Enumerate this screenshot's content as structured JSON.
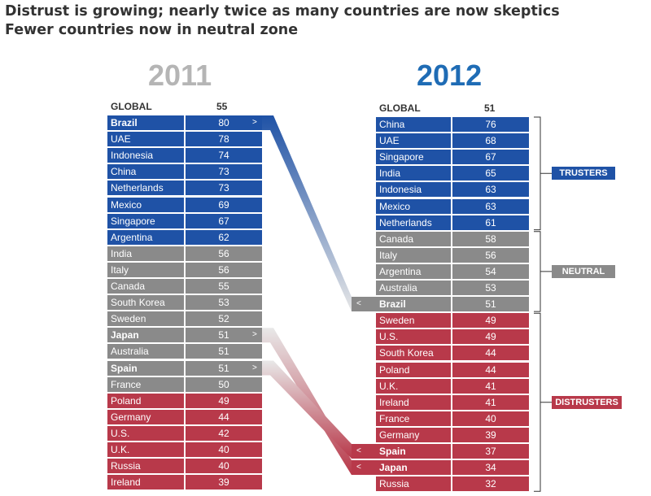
{
  "header": {
    "title": "Distrust is growing; nearly twice as many countries are now skeptics",
    "subtitle": "Fewer countries now in neutral zone"
  },
  "colors": {
    "truster": "#1f52a6",
    "neutral": "#8a8a8a",
    "distruster": "#b8394a",
    "year2011": "#b5b5b5",
    "year2012": "#1f6cb5"
  },
  "chart_data": {
    "type": "table",
    "tables": [
      {
        "year": "2011",
        "global_label": "GLOBAL",
        "global_value": "55",
        "rows": [
          {
            "country": "Brazil",
            "value": "80",
            "zone": "truster",
            "highlight": true,
            "mark": ">"
          },
          {
            "country": "UAE",
            "value": "78",
            "zone": "truster"
          },
          {
            "country": "Indonesia",
            "value": "74",
            "zone": "truster"
          },
          {
            "country": "China",
            "value": "73",
            "zone": "truster"
          },
          {
            "country": "Netherlands",
            "value": "73",
            "zone": "truster"
          },
          {
            "country": "Mexico",
            "value": "69",
            "zone": "truster"
          },
          {
            "country": "Singapore",
            "value": "67",
            "zone": "truster"
          },
          {
            "country": "Argentina",
            "value": "62",
            "zone": "truster"
          },
          {
            "country": "India",
            "value": "56",
            "zone": "neutral"
          },
          {
            "country": "Italy",
            "value": "56",
            "zone": "neutral"
          },
          {
            "country": "Canada",
            "value": "55",
            "zone": "neutral"
          },
          {
            "country": "South Korea",
            "value": "53",
            "zone": "neutral"
          },
          {
            "country": "Sweden",
            "value": "52",
            "zone": "neutral"
          },
          {
            "country": "Japan",
            "value": "51",
            "zone": "neutral",
            "highlight": true,
            "mark": ">"
          },
          {
            "country": "Australia",
            "value": "51",
            "zone": "neutral"
          },
          {
            "country": "Spain",
            "value": "51",
            "zone": "neutral",
            "highlight": true,
            "mark": ">"
          },
          {
            "country": "France",
            "value": "50",
            "zone": "neutral"
          },
          {
            "country": "Poland",
            "value": "49",
            "zone": "distruster"
          },
          {
            "country": "Germany",
            "value": "44",
            "zone": "distruster"
          },
          {
            "country": "U.S.",
            "value": "42",
            "zone": "distruster"
          },
          {
            "country": "U.K.",
            "value": "40",
            "zone": "distruster"
          },
          {
            "country": "Russia",
            "value": "40",
            "zone": "distruster"
          },
          {
            "country": "Ireland",
            "value": "39",
            "zone": "distruster"
          }
        ]
      },
      {
        "year": "2012",
        "global_label": "GLOBAL",
        "global_value": "51",
        "rows": [
          {
            "country": "China",
            "value": "76",
            "zone": "truster"
          },
          {
            "country": "UAE",
            "value": "68",
            "zone": "truster"
          },
          {
            "country": "Singapore",
            "value": "67",
            "zone": "truster"
          },
          {
            "country": "India",
            "value": "65",
            "zone": "truster"
          },
          {
            "country": "Indonesia",
            "value": "63",
            "zone": "truster"
          },
          {
            "country": "Mexico",
            "value": "63",
            "zone": "truster"
          },
          {
            "country": "Netherlands",
            "value": "61",
            "zone": "truster"
          },
          {
            "country": "Canada",
            "value": "58",
            "zone": "neutral"
          },
          {
            "country": "Italy",
            "value": "56",
            "zone": "neutral"
          },
          {
            "country": "Argentina",
            "value": "54",
            "zone": "neutral"
          },
          {
            "country": "Australia",
            "value": "53",
            "zone": "neutral"
          },
          {
            "country": "Brazil",
            "value": "51",
            "zone": "neutral",
            "highlight": true,
            "mark": "<"
          },
          {
            "country": "Sweden",
            "value": "49",
            "zone": "distruster"
          },
          {
            "country": "U.S.",
            "value": "49",
            "zone": "distruster"
          },
          {
            "country": "South Korea",
            "value": "44",
            "zone": "distruster"
          },
          {
            "country": "Poland",
            "value": "44",
            "zone": "distruster"
          },
          {
            "country": "U.K.",
            "value": "41",
            "zone": "distruster"
          },
          {
            "country": "Ireland",
            "value": "41",
            "zone": "distruster"
          },
          {
            "country": "France",
            "value": "40",
            "zone": "distruster"
          },
          {
            "country": "Germany",
            "value": "39",
            "zone": "distruster"
          },
          {
            "country": "Spain",
            "value": "37",
            "zone": "distruster",
            "highlight": true,
            "mark": "<"
          },
          {
            "country": "Japan",
            "value": "34",
            "zone": "distruster",
            "highlight": true,
            "mark": "<"
          },
          {
            "country": "Russia",
            "value": "32",
            "zone": "distruster"
          }
        ]
      }
    ],
    "groups": [
      {
        "label": "TRUSTERS",
        "zone": "truster"
      },
      {
        "label": "NEUTRAL",
        "zone": "neutral"
      },
      {
        "label": "DISTRUSTERS",
        "zone": "distruster"
      }
    ],
    "connections": [
      {
        "country": "Brazil",
        "zone_to": "neutral"
      },
      {
        "country": "Japan",
        "zone_to": "distruster"
      },
      {
        "country": "Spain",
        "zone_to": "distruster"
      }
    ]
  }
}
